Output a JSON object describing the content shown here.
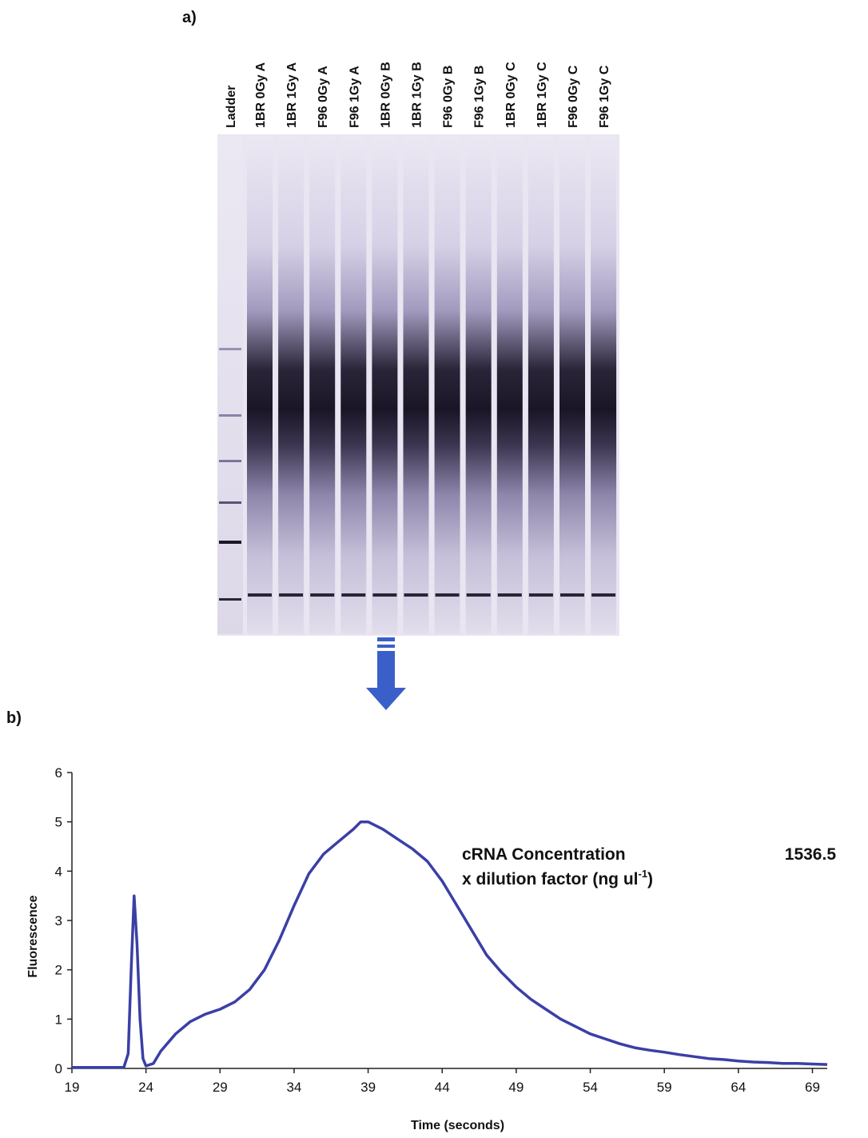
{
  "gel": {
    "label": "a)",
    "lanes": [
      "Ladder",
      "1BR 0Gy A",
      "1BR 1Gy A",
      "F96 0Gy A",
      "F96 1Gy A",
      "1BR 0Gy B",
      "1BR 1Gy B",
      "F96 0Gy B",
      "F96 1Gy B",
      "1BR 0Gy C",
      "1BR 1Gy C",
      "F96 0Gy C",
      "F96 1Gy C"
    ]
  },
  "panel_b_label": "b)",
  "chart_data": {
    "type": "line",
    "xlabel": "Time (seconds)",
    "ylabel": "Fluorescence",
    "x": [
      19,
      22.5,
      22.8,
      23.0,
      23.2,
      23.4,
      23.6,
      23.8,
      24,
      24.5,
      25,
      26,
      27,
      28,
      29,
      30,
      31,
      32,
      33,
      34,
      35,
      36,
      37,
      38,
      38.5,
      39,
      40,
      41,
      42,
      43,
      44,
      45,
      46,
      47,
      48,
      49,
      50,
      51,
      52,
      53,
      54,
      55,
      56,
      57,
      58,
      59,
      60,
      61,
      62,
      63,
      64,
      65,
      66,
      67,
      68,
      69,
      70
    ],
    "series": [
      {
        "color": "#3a3fa6",
        "values": [
          0.02,
          0.02,
          0.3,
          2,
          3.5,
          2.5,
          1,
          0.2,
          0.05,
          0.1,
          0.35,
          0.7,
          0.95,
          1.1,
          1.2,
          1.35,
          1.6,
          2.0,
          2.6,
          3.3,
          3.95,
          4.35,
          4.6,
          4.85,
          5.0,
          5.0,
          4.85,
          4.65,
          4.45,
          4.2,
          3.8,
          3.3,
          2.8,
          2.3,
          1.95,
          1.65,
          1.4,
          1.2,
          1.0,
          0.85,
          0.7,
          0.6,
          0.5,
          0.42,
          0.37,
          0.33,
          0.28,
          0.24,
          0.2,
          0.18,
          0.15,
          0.13,
          0.12,
          0.1,
          0.1,
          0.09,
          0.08
        ]
      }
    ],
    "xlim": [
      19,
      70
    ],
    "xticks": [
      19,
      24,
      29,
      34,
      39,
      44,
      49,
      54,
      59,
      64,
      69
    ],
    "ylim": [
      0,
      6
    ],
    "yticks": [
      0,
      1,
      2,
      3,
      4,
      5,
      6
    ],
    "annotation": {
      "line1": "cRNA Concentration",
      "line2": "x dilution factor (ng ul",
      "line2_sup": "-1",
      "line2_end": ")",
      "value": 1536.5
    }
  }
}
